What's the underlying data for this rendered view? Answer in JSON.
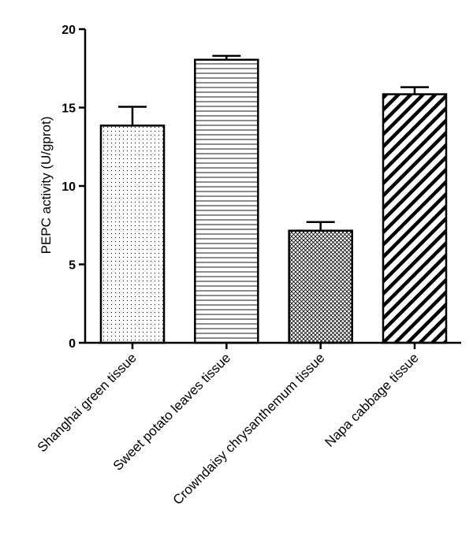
{
  "chart_data": {
    "type": "bar",
    "title": "",
    "xlabel": "",
    "ylabel": "PEPC activity (U/gprot)",
    "ylim": [
      0,
      20
    ],
    "yticks": [
      0,
      5,
      10,
      15,
      20
    ],
    "categories": [
      "Shanghai green tissue",
      "Sweet potato leaves tissue",
      "Crowndaisy chrysanthemum tissue",
      "Napa cabbage tissue"
    ],
    "values": [
      13.85,
      18.05,
      7.15,
      15.85
    ],
    "errors": [
      1.2,
      0.25,
      0.55,
      0.45
    ],
    "patterns": [
      "dots",
      "horizontal-lines",
      "crosshatch",
      "diagonal-stripes"
    ],
    "grid": false
  }
}
